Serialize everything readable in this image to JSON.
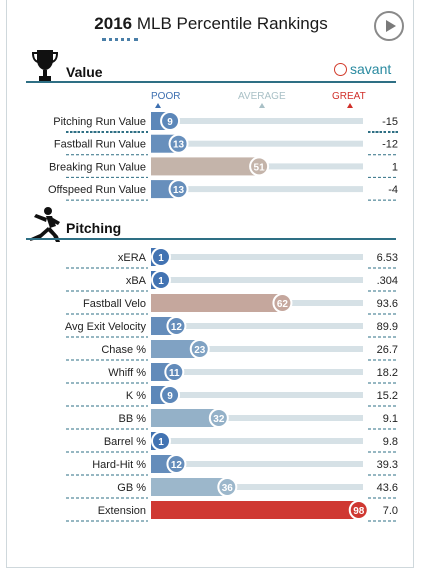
{
  "header": {
    "year": "2016",
    "title_rest": " MLB Percentile Rankings"
  },
  "brand": {
    "name": "savant"
  },
  "scale_labels": {
    "poor": "POOR",
    "average": "AVERAGE",
    "great": "GREAT"
  },
  "colors": {
    "poor": "#3d6fb0",
    "average_light": "#b9cdd3",
    "neutral": "#c4b4aa",
    "great": "#d0302a",
    "track": "#d6e1e6"
  },
  "sections": {
    "value": "Value",
    "pitching": "Pitching"
  },
  "chart_data": {
    "type": "bar",
    "title": "2016 MLB Percentile Rankings",
    "xlim": [
      0,
      100
    ],
    "groups": [
      {
        "name": "Value",
        "rows": [
          {
            "label": "Pitching Run Value",
            "percentile": 9,
            "stat": "-15"
          },
          {
            "label": "Fastball Run Value",
            "percentile": 13,
            "stat": "-12"
          },
          {
            "label": "Breaking Run Value",
            "percentile": 51,
            "stat": "1"
          },
          {
            "label": "Offspeed Run Value",
            "percentile": 13,
            "stat": "-4"
          }
        ]
      },
      {
        "name": "Pitching",
        "rows": [
          {
            "label": "xERA",
            "percentile": 1,
            "stat": "6.53"
          },
          {
            "label": "xBA",
            "percentile": 1,
            "stat": ".304"
          },
          {
            "label": "Fastball Velo",
            "percentile": 62,
            "stat": "93.6"
          },
          {
            "label": "Avg Exit Velocity",
            "percentile": 12,
            "stat": "89.9"
          },
          {
            "label": "Chase %",
            "percentile": 23,
            "stat": "26.7"
          },
          {
            "label": "Whiff %",
            "percentile": 11,
            "stat": "18.2"
          },
          {
            "label": "K %",
            "percentile": 9,
            "stat": "15.2"
          },
          {
            "label": "BB %",
            "percentile": 32,
            "stat": "9.1"
          },
          {
            "label": "Barrel %",
            "percentile": 1,
            "stat": "9.8"
          },
          {
            "label": "Hard-Hit %",
            "percentile": 12,
            "stat": "39.3"
          },
          {
            "label": "GB %",
            "percentile": 36,
            "stat": "43.6"
          },
          {
            "label": "Extension",
            "percentile": 98,
            "stat": "7.0"
          }
        ]
      }
    ]
  }
}
